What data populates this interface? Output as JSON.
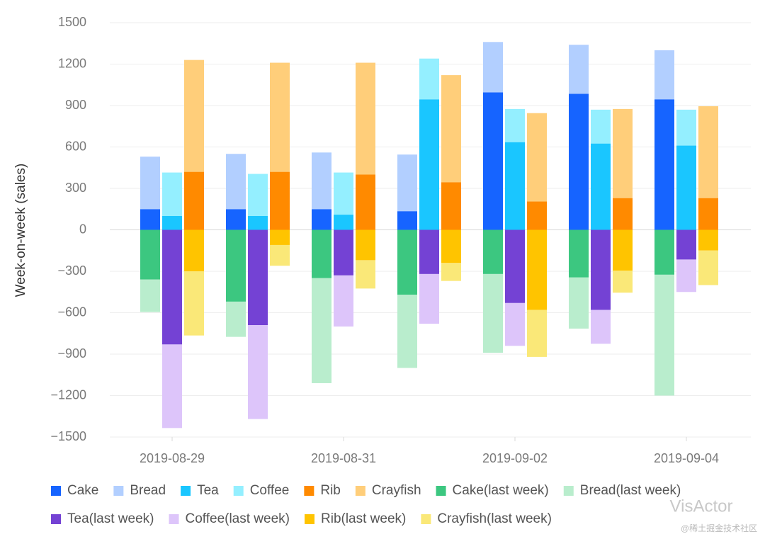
{
  "chart_data": {
    "type": "bar",
    "y_label": "Week-on-week (sales)",
    "categories": [
      "2019-08-29",
      null,
      "2019-08-31",
      null,
      "2019-09-02",
      null,
      "2019-09-04"
    ],
    "ylim": [
      -1500,
      1500
    ],
    "yticks": [
      {
        "value": -1500,
        "label": "−1500"
      },
      {
        "value": -1200,
        "label": "−1200"
      },
      {
        "value": -900,
        "label": "−900"
      },
      {
        "value": -600,
        "label": "−600"
      },
      {
        "value": -300,
        "label": "−300"
      },
      0,
      300,
      600,
      900,
      1200,
      1500
    ],
    "grid": true,
    "series": [
      {
        "name": "Cake",
        "color": "#1664FF",
        "values": [
          150,
          150,
          150,
          135,
          995,
          985,
          945
        ]
      },
      {
        "name": "Bread",
        "color": "#B2CFFF",
        "values": [
          380,
          400,
          410,
          410,
          365,
          355,
          355
        ]
      },
      {
        "name": "Tea",
        "color": "#1AC6FF",
        "values": [
          100,
          100,
          110,
          945,
          635,
          625,
          610
        ]
      },
      {
        "name": "Coffee",
        "color": "#94EFFF",
        "values": [
          315,
          305,
          305,
          295,
          240,
          245,
          260
        ]
      },
      {
        "name": "Rib",
        "color": "#FF8A00",
        "values": [
          420,
          420,
          400,
          345,
          205,
          230,
          230
        ]
      },
      {
        "name": "Crayfish",
        "color": "#FFCE7A",
        "values": [
          810,
          790,
          810,
          775,
          640,
          645,
          665
        ]
      },
      {
        "name": "Cake(last week)",
        "color": "#3CC780",
        "values": [
          -360,
          -520,
          -350,
          -470,
          -320,
          -345,
          -325
        ]
      },
      {
        "name": "Bread(last week)",
        "color": "#B9EDCD",
        "values": [
          -235,
          -255,
          -760,
          -530,
          -570,
          -370,
          -875
        ]
      },
      {
        "name": "Tea(last week)",
        "color": "#7442D4",
        "values": [
          -830,
          -690,
          -330,
          -320,
          -530,
          -580,
          -215
        ]
      },
      {
        "name": "Coffee(last week)",
        "color": "#DDC5FA",
        "values": [
          -605,
          -680,
          -370,
          -360,
          -310,
          -245,
          -235
        ]
      },
      {
        "name": "Rib(last week)",
        "color": "#FFC400",
        "values": [
          -300,
          -110,
          -220,
          -240,
          -580,
          -295,
          -150
        ]
      },
      {
        "name": "Crayfish(last week)",
        "color": "#FAE878",
        "values": [
          -465,
          -150,
          -205,
          -130,
          -340,
          -160,
          -250
        ]
      }
    ],
    "watermark": [
      "VisActor",
      "@稀土掘金技术社区"
    ]
  }
}
